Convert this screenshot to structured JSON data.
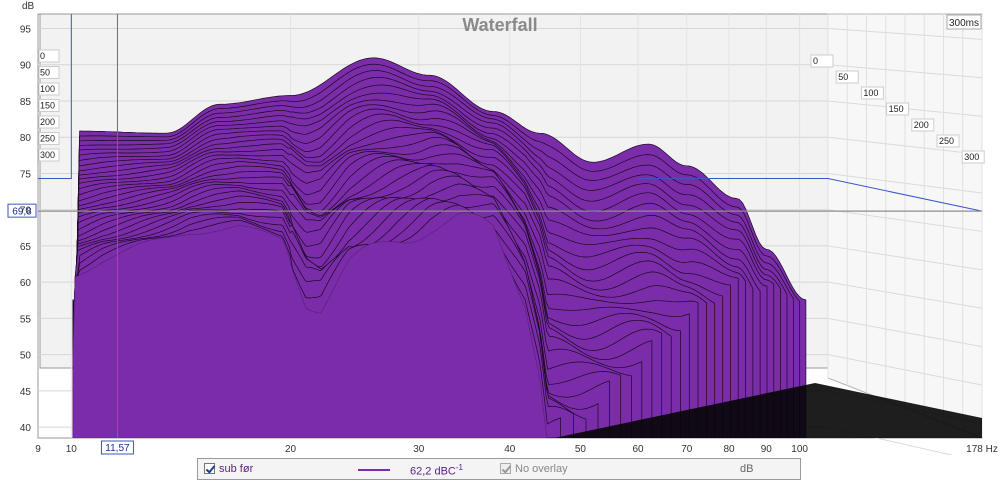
{
  "chart_data": {
    "type": "area",
    "title": "Waterfall",
    "ylabel": "dB",
    "xunit": "Hz",
    "ylim": [
      38.5,
      97
    ],
    "xlim": [
      9,
      178
    ],
    "x_scale": "log",
    "y_ticks": [
      "95",
      "90",
      "85",
      "80",
      "75",
      "70",
      "65",
      "60",
      "55",
      "50",
      "45",
      "40"
    ],
    "x_ticks": [
      "9",
      "10",
      "20",
      "30",
      "40",
      "50",
      "60",
      "70",
      "80",
      "90",
      "100"
    ],
    "x_end_label": "178 Hz",
    "time_axis_label": "300ms",
    "time_ticks_back": [
      "0",
      "50",
      "100",
      "150",
      "200",
      "250",
      "300"
    ],
    "time_ticks_side": [
      "0",
      "50",
      "100",
      "150",
      "200",
      "250",
      "300"
    ],
    "cursor": {
      "x_label": "11,57",
      "y_label": "69,8",
      "x": 11.57,
      "y": 69.8
    },
    "series": [
      {
        "name": "sub før",
        "color": "#7B2CA9",
        "slices_ms": [
          0,
          300
        ],
        "peaks": [
          {
            "hz": 10.2,
            "db": 80.3
          },
          {
            "hz": 13.5,
            "db": 80.0
          },
          {
            "hz": 16,
            "db": 84
          },
          {
            "hz": 20,
            "db": 85.2
          },
          {
            "hz": 26,
            "db": 90.4
          },
          {
            "hz": 31,
            "db": 88
          },
          {
            "hz": 38,
            "db": 83
          },
          {
            "hz": 44,
            "db": 80
          },
          {
            "hz": 52,
            "db": 76
          },
          {
            "hz": 62,
            "db": 78.5
          },
          {
            "hz": 70,
            "db": 75.5
          },
          {
            "hz": 82,
            "db": 71
          },
          {
            "hz": 90,
            "db": 64
          },
          {
            "hz": 102,
            "db": 57
          }
        ],
        "front_slice": [
          {
            "hz": 10.0,
            "db": 39
          },
          {
            "hz": 10.1,
            "db": 61
          },
          {
            "hz": 11.0,
            "db": 63
          },
          {
            "hz": 12.5,
            "db": 65
          },
          {
            "hz": 14.5,
            "db": 67
          },
          {
            "hz": 17,
            "db": 67.5
          },
          {
            "hz": 19.5,
            "db": 66
          },
          {
            "hz": 21,
            "db": 58
          },
          {
            "hz": 22,
            "db": 57
          },
          {
            "hz": 24,
            "db": 62
          },
          {
            "hz": 26,
            "db": 64
          },
          {
            "hz": 28,
            "db": 66
          },
          {
            "hz": 31,
            "db": 68
          },
          {
            "hz": 34,
            "db": 68.5
          },
          {
            "hz": 38,
            "db": 67
          },
          {
            "hz": 42,
            "db": 58
          },
          {
            "hz": 44,
            "db": 48
          },
          {
            "hz": 45,
            "db": 39
          }
        ]
      }
    ]
  },
  "legend": {
    "series_name": "sub før",
    "value": "62,2 dBC",
    "value_sup": "-1",
    "overlay": "No overlay",
    "unit": "dB"
  }
}
